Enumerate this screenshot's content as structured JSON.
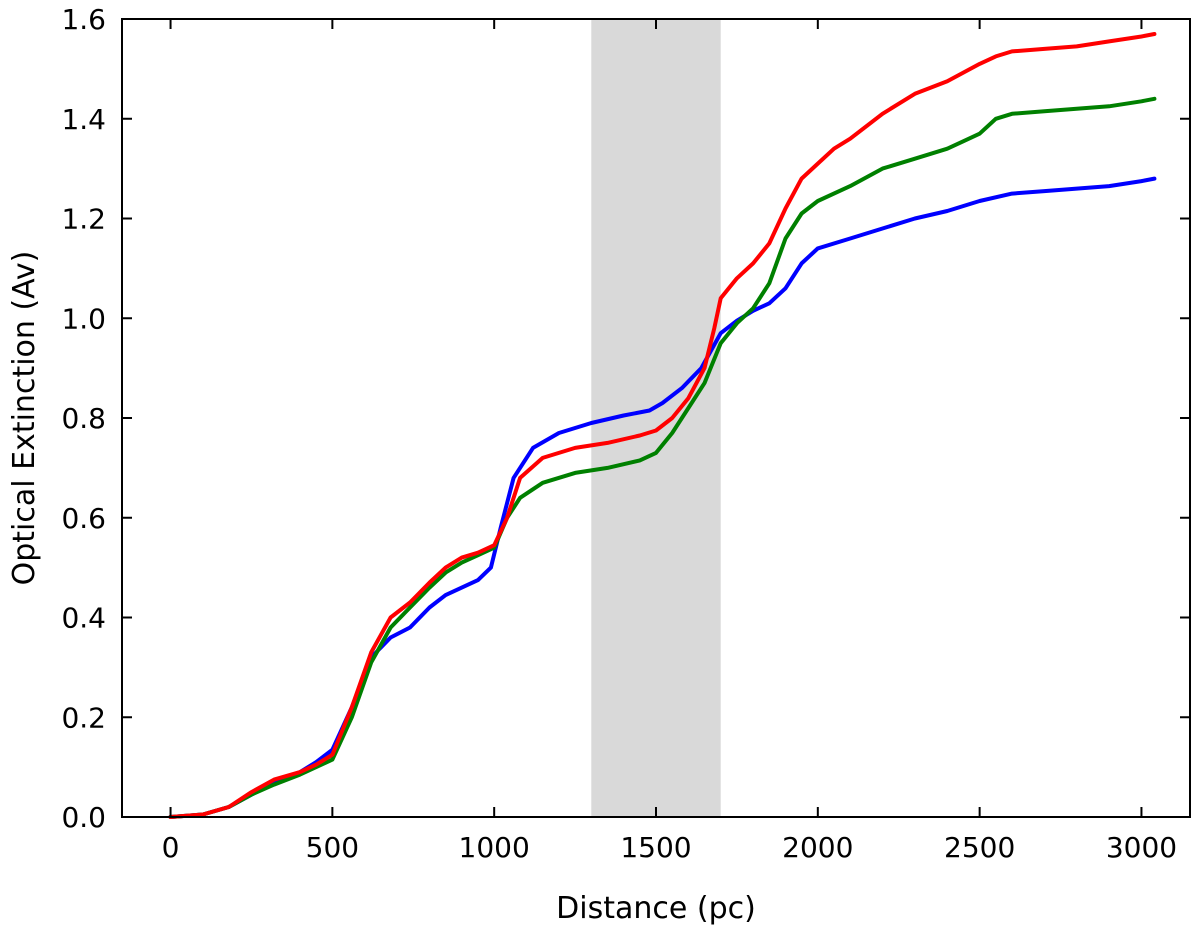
{
  "chart_data": {
    "type": "line",
    "title": "",
    "xlabel": "Distance (pc)",
    "ylabel": "Optical Extinction (Av)",
    "xlim": [
      -150,
      3150
    ],
    "ylim": [
      0.0,
      1.6
    ],
    "grid": false,
    "x_ticks": [
      0,
      500,
      1000,
      1500,
      2000,
      2500,
      3000
    ],
    "x_tick_labels": [
      "0",
      "500",
      "1000",
      "1500",
      "2000",
      "2500",
      "3000"
    ],
    "y_ticks": [
      0.0,
      0.2,
      0.4,
      0.6,
      0.8,
      1.0,
      1.2,
      1.4,
      1.6
    ],
    "y_tick_labels": [
      "0.0",
      "0.2",
      "0.4",
      "0.6",
      "0.8",
      "1.0",
      "1.2",
      "1.4",
      "1.6"
    ],
    "shaded_band": {
      "x_start": 1300,
      "x_end": 1700,
      "color": "#d9d9d9"
    },
    "series": [
      {
        "color": "#0000ff",
        "points": [
          [
            0,
            0.0
          ],
          [
            100,
            0.005
          ],
          [
            180,
            0.02
          ],
          [
            250,
            0.045
          ],
          [
            320,
            0.07
          ],
          [
            400,
            0.09
          ],
          [
            450,
            0.11
          ],
          [
            500,
            0.135
          ],
          [
            560,
            0.22
          ],
          [
            620,
            0.32
          ],
          [
            680,
            0.36
          ],
          [
            740,
            0.38
          ],
          [
            800,
            0.42
          ],
          [
            850,
            0.445
          ],
          [
            900,
            0.46
          ],
          [
            950,
            0.475
          ],
          [
            990,
            0.5
          ],
          [
            1020,
            0.58
          ],
          [
            1060,
            0.68
          ],
          [
            1120,
            0.74
          ],
          [
            1200,
            0.77
          ],
          [
            1300,
            0.79
          ],
          [
            1400,
            0.805
          ],
          [
            1480,
            0.815
          ],
          [
            1520,
            0.83
          ],
          [
            1580,
            0.86
          ],
          [
            1640,
            0.9
          ],
          [
            1700,
            0.97
          ],
          [
            1750,
            0.995
          ],
          [
            1800,
            1.015
          ],
          [
            1850,
            1.03
          ],
          [
            1900,
            1.06
          ],
          [
            1950,
            1.11
          ],
          [
            2000,
            1.14
          ],
          [
            2100,
            1.16
          ],
          [
            2200,
            1.18
          ],
          [
            2300,
            1.2
          ],
          [
            2400,
            1.215
          ],
          [
            2500,
            1.235
          ],
          [
            2600,
            1.25
          ],
          [
            2700,
            1.255
          ],
          [
            2800,
            1.26
          ],
          [
            2900,
            1.265
          ],
          [
            3000,
            1.275
          ],
          [
            3040,
            1.28
          ]
        ]
      },
      {
        "color": "#008000",
        "points": [
          [
            0,
            0.0
          ],
          [
            100,
            0.005
          ],
          [
            180,
            0.02
          ],
          [
            250,
            0.045
          ],
          [
            320,
            0.065
          ],
          [
            400,
            0.085
          ],
          [
            450,
            0.1
          ],
          [
            500,
            0.115
          ],
          [
            560,
            0.2
          ],
          [
            620,
            0.31
          ],
          [
            680,
            0.38
          ],
          [
            740,
            0.42
          ],
          [
            800,
            0.46
          ],
          [
            850,
            0.49
          ],
          [
            900,
            0.51
          ],
          [
            950,
            0.525
          ],
          [
            1000,
            0.54
          ],
          [
            1040,
            0.6
          ],
          [
            1080,
            0.64
          ],
          [
            1150,
            0.67
          ],
          [
            1250,
            0.69
          ],
          [
            1350,
            0.7
          ],
          [
            1450,
            0.715
          ],
          [
            1500,
            0.73
          ],
          [
            1550,
            0.77
          ],
          [
            1600,
            0.82
          ],
          [
            1650,
            0.87
          ],
          [
            1700,
            0.95
          ],
          [
            1750,
            0.99
          ],
          [
            1800,
            1.02
          ],
          [
            1850,
            1.07
          ],
          [
            1900,
            1.16
          ],
          [
            1950,
            1.21
          ],
          [
            2000,
            1.235
          ],
          [
            2100,
            1.265
          ],
          [
            2200,
            1.3
          ],
          [
            2300,
            1.32
          ],
          [
            2400,
            1.34
          ],
          [
            2450,
            1.355
          ],
          [
            2500,
            1.37
          ],
          [
            2550,
            1.4
          ],
          [
            2600,
            1.41
          ],
          [
            2700,
            1.415
          ],
          [
            2800,
            1.42
          ],
          [
            2900,
            1.425
          ],
          [
            3000,
            1.435
          ],
          [
            3040,
            1.44
          ]
        ]
      },
      {
        "color": "#ff0000",
        "points": [
          [
            0,
            0.0
          ],
          [
            100,
            0.005
          ],
          [
            180,
            0.02
          ],
          [
            250,
            0.05
          ],
          [
            320,
            0.075
          ],
          [
            400,
            0.09
          ],
          [
            450,
            0.105
          ],
          [
            500,
            0.125
          ],
          [
            560,
            0.22
          ],
          [
            620,
            0.33
          ],
          [
            680,
            0.4
          ],
          [
            740,
            0.43
          ],
          [
            800,
            0.47
          ],
          [
            850,
            0.5
          ],
          [
            900,
            0.52
          ],
          [
            950,
            0.53
          ],
          [
            1000,
            0.545
          ],
          [
            1040,
            0.6
          ],
          [
            1080,
            0.68
          ],
          [
            1150,
            0.72
          ],
          [
            1250,
            0.74
          ],
          [
            1350,
            0.75
          ],
          [
            1450,
            0.765
          ],
          [
            1500,
            0.775
          ],
          [
            1550,
            0.8
          ],
          [
            1600,
            0.84
          ],
          [
            1650,
            0.9
          ],
          [
            1680,
            0.98
          ],
          [
            1700,
            1.04
          ],
          [
            1750,
            1.08
          ],
          [
            1800,
            1.11
          ],
          [
            1850,
            1.15
          ],
          [
            1900,
            1.22
          ],
          [
            1950,
            1.28
          ],
          [
            2000,
            1.31
          ],
          [
            2050,
            1.34
          ],
          [
            2100,
            1.36
          ],
          [
            2200,
            1.41
          ],
          [
            2300,
            1.45
          ],
          [
            2400,
            1.475
          ],
          [
            2500,
            1.51
          ],
          [
            2550,
            1.525
          ],
          [
            2600,
            1.535
          ],
          [
            2700,
            1.54
          ],
          [
            2800,
            1.545
          ],
          [
            2900,
            1.555
          ],
          [
            3000,
            1.565
          ],
          [
            3040,
            1.57
          ]
        ]
      }
    ]
  }
}
